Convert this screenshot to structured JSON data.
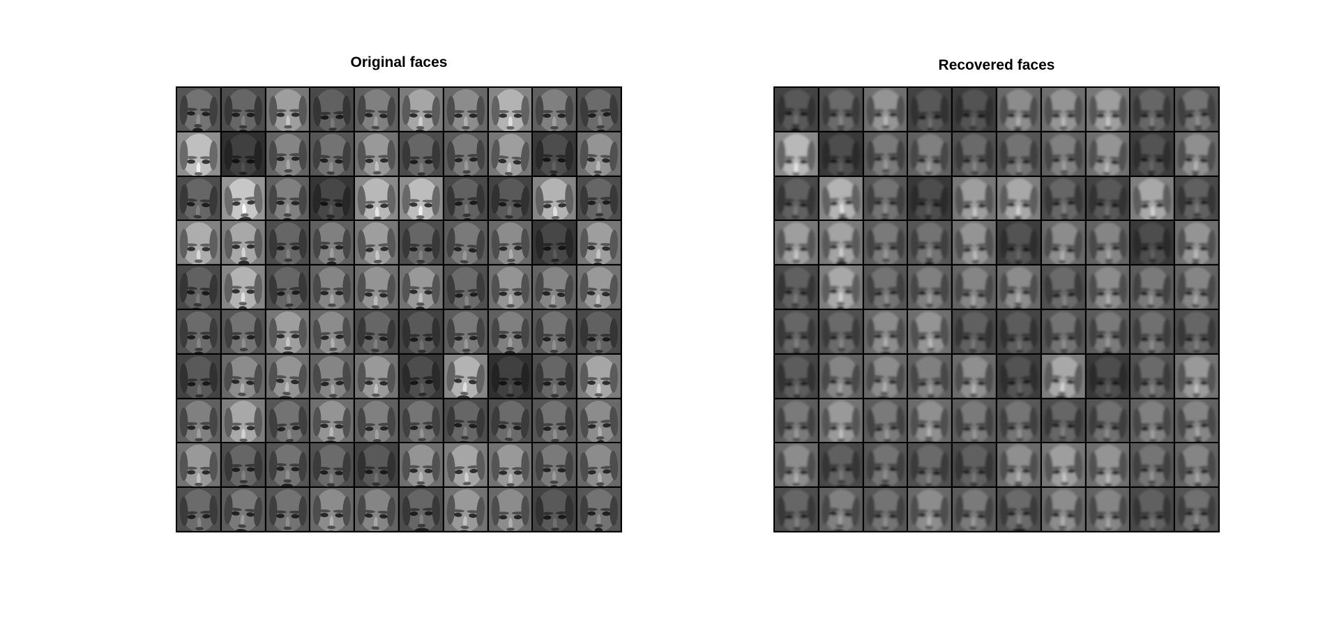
{
  "panels": [
    {
      "title": "Original faces"
    },
    {
      "title": "Recovered faces"
    }
  ],
  "grid": {
    "rows": 10,
    "cols": 10
  },
  "tile_style": "grayscale face thumbnails",
  "brightness": {
    "original": [
      [
        0.45,
        0.4,
        0.62,
        0.38,
        0.5,
        0.65,
        0.55,
        0.7,
        0.5,
        0.42
      ],
      [
        0.75,
        0.25,
        0.52,
        0.45,
        0.6,
        0.4,
        0.48,
        0.62,
        0.3,
        0.58
      ],
      [
        0.4,
        0.78,
        0.5,
        0.28,
        0.72,
        0.74,
        0.38,
        0.35,
        0.7,
        0.4
      ],
      [
        0.68,
        0.66,
        0.4,
        0.5,
        0.62,
        0.4,
        0.48,
        0.55,
        0.28,
        0.62
      ],
      [
        0.38,
        0.7,
        0.4,
        0.52,
        0.58,
        0.6,
        0.42,
        0.58,
        0.52,
        0.6
      ],
      [
        0.42,
        0.45,
        0.62,
        0.55,
        0.4,
        0.35,
        0.48,
        0.5,
        0.45,
        0.38
      ],
      [
        0.35,
        0.55,
        0.58,
        0.52,
        0.6,
        0.3,
        0.7,
        0.25,
        0.4,
        0.65
      ],
      [
        0.5,
        0.66,
        0.45,
        0.58,
        0.5,
        0.46,
        0.4,
        0.42,
        0.45,
        0.55
      ],
      [
        0.6,
        0.4,
        0.45,
        0.42,
        0.35,
        0.58,
        0.65,
        0.6,
        0.48,
        0.55
      ],
      [
        0.42,
        0.48,
        0.45,
        0.55,
        0.52,
        0.4,
        0.6,
        0.55,
        0.35,
        0.45
      ]
    ],
    "recovered": [
      [
        0.35,
        0.42,
        0.58,
        0.35,
        0.32,
        0.55,
        0.58,
        0.62,
        0.4,
        0.45
      ],
      [
        0.72,
        0.3,
        0.48,
        0.5,
        0.42,
        0.45,
        0.5,
        0.58,
        0.32,
        0.56
      ],
      [
        0.38,
        0.7,
        0.45,
        0.3,
        0.62,
        0.66,
        0.4,
        0.35,
        0.66,
        0.38
      ],
      [
        0.62,
        0.64,
        0.48,
        0.45,
        0.58,
        0.32,
        0.55,
        0.52,
        0.3,
        0.58
      ],
      [
        0.38,
        0.66,
        0.45,
        0.5,
        0.52,
        0.55,
        0.42,
        0.55,
        0.48,
        0.52
      ],
      [
        0.4,
        0.42,
        0.55,
        0.58,
        0.38,
        0.36,
        0.45,
        0.48,
        0.44,
        0.4
      ],
      [
        0.36,
        0.52,
        0.55,
        0.5,
        0.56,
        0.32,
        0.66,
        0.3,
        0.42,
        0.6
      ],
      [
        0.48,
        0.6,
        0.48,
        0.56,
        0.48,
        0.46,
        0.4,
        0.44,
        0.5,
        0.52
      ],
      [
        0.55,
        0.38,
        0.45,
        0.42,
        0.38,
        0.56,
        0.62,
        0.58,
        0.46,
        0.52
      ],
      [
        0.4,
        0.5,
        0.45,
        0.55,
        0.48,
        0.42,
        0.55,
        0.52,
        0.38,
        0.44
      ]
    ]
  }
}
